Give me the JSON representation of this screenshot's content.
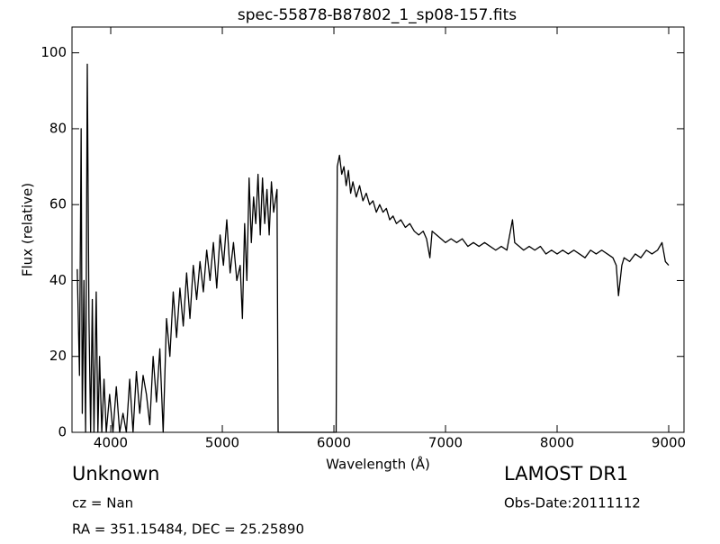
{
  "chart_data": {
    "type": "line",
    "title": "spec-55878-B87802_1_sp08-157.fits",
    "xlabel": "Wavelength (Å)",
    "ylabel": "Flux (relative)",
    "color": "#000000",
    "xlim": [
      3653,
      9137
    ],
    "ylim": [
      0,
      106.8
    ],
    "xticks": [
      4000,
      5000,
      6000,
      7000,
      8000,
      9000
    ],
    "yticks": [
      0,
      20,
      40,
      60,
      80,
      100
    ],
    "annotations": [
      "Unknown",
      "cz = Nan",
      "RA = 351.15484, DEC = 25.25890",
      "LAMOST DR1",
      "Obs-Date:20111112"
    ],
    "x": [
      3700,
      3720,
      3735,
      3745,
      3760,
      3775,
      3790,
      3805,
      3820,
      3835,
      3850,
      3870,
      3885,
      3900,
      3920,
      3940,
      3960,
      3990,
      4020,
      4050,
      4080,
      4110,
      4140,
      4170,
      4200,
      4230,
      4260,
      4290,
      4320,
      4350,
      4380,
      4410,
      4440,
      4470,
      4500,
      4530,
      4560,
      4590,
      4620,
      4650,
      4680,
      4710,
      4740,
      4770,
      4800,
      4830,
      4860,
      4890,
      4920,
      4950,
      4980,
      5010,
      5040,
      5070,
      5100,
      5130,
      5160,
      5180,
      5200,
      5220,
      5240,
      5260,
      5280,
      5300,
      5320,
      5340,
      5360,
      5380,
      5400,
      5420,
      5440,
      5460,
      5490,
      5500,
      6020,
      6030,
      6050,
      6070,
      6090,
      6110,
      6130,
      6150,
      6170,
      6200,
      6230,
      6260,
      6290,
      6320,
      6350,
      6380,
      6410,
      6440,
      6470,
      6500,
      6530,
      6560,
      6600,
      6640,
      6680,
      6720,
      6760,
      6800,
      6830,
      6860,
      6880,
      6920,
      6960,
      7000,
      7050,
      7100,
      7150,
      7200,
      7250,
      7300,
      7350,
      7400,
      7450,
      7500,
      7550,
      7600,
      7620,
      7660,
      7700,
      7750,
      7800,
      7850,
      7900,
      7950,
      8000,
      8050,
      8100,
      8150,
      8200,
      8250,
      8300,
      8350,
      8400,
      8450,
      8500,
      8530,
      8550,
      8580,
      8600,
      8650,
      8700,
      8750,
      8800,
      8850,
      8900,
      8940,
      8970,
      9000
    ],
    "values": [
      43,
      15,
      80,
      5,
      40,
      0,
      97,
      30,
      0,
      35,
      0,
      37,
      0,
      20,
      0,
      14,
      0,
      10,
      0,
      12,
      0,
      5,
      0,
      14,
      0,
      16,
      5,
      15,
      10,
      2,
      20,
      8,
      22,
      0,
      30,
      20,
      37,
      25,
      38,
      28,
      42,
      30,
      44,
      35,
      45,
      37,
      48,
      40,
      50,
      38,
      52,
      44,
      56,
      42,
      50,
      40,
      44,
      30,
      55,
      40,
      67,
      50,
      62,
      55,
      68,
      52,
      67,
      55,
      64,
      52,
      66,
      58,
      64,
      0,
      0,
      70,
      73,
      68,
      70,
      65,
      69,
      63,
      66,
      62,
      65,
      61,
      63,
      60,
      61,
      58,
      60,
      58,
      59,
      56,
      57,
      55,
      56,
      54,
      55,
      53,
      52,
      53,
      51,
      46,
      53,
      52,
      51,
      50,
      51,
      50,
      51,
      49,
      50,
      49,
      50,
      49,
      48,
      49,
      48,
      56,
      50,
      49,
      48,
      49,
      48,
      49,
      47,
      48,
      47,
      48,
      47,
      48,
      47,
      46,
      48,
      47,
      48,
      47,
      46,
      44,
      36,
      44,
      46,
      45,
      47,
      46,
      48,
      47,
      48,
      50,
      45,
      44
    ]
  }
}
